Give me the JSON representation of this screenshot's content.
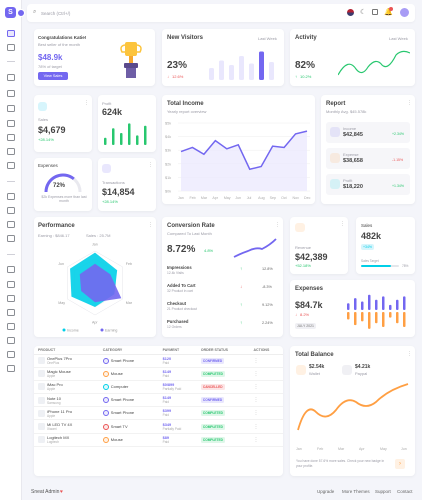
{
  "topbar": {
    "search_placeholder": "Search (Ctrl+/)"
  },
  "congrats": {
    "title": "Congratulations Katie!",
    "subtitle": "Best seller of the month",
    "amount": "$48.9k",
    "target": "78% of target",
    "button": "View Sales"
  },
  "visitors": {
    "title": "New Visitors",
    "period": "Last Week",
    "value": "23%",
    "change": "12.6%",
    "bars": [
      40,
      65,
      50,
      80,
      55,
      95,
      60
    ]
  },
  "activity": {
    "title": "Activity",
    "period": "Last Week",
    "value": "82%",
    "change": "10.2%"
  },
  "sales_small": {
    "label": "Sales",
    "value": "$4,679",
    "change": "+28.14%"
  },
  "profit_small": {
    "label": "Profit",
    "value": "624k",
    "bars": [
      30,
      70,
      50,
      90,
      40,
      80
    ]
  },
  "total_income": {
    "title": "Total Income",
    "subtitle": "Yearly report overview",
    "y_ticks": [
      "$5k",
      "$4k",
      "$3k",
      "$2k",
      "$1k",
      "$0k"
    ],
    "months": [
      "Jan",
      "Feb",
      "Mar",
      "Apr",
      "May",
      "Jun",
      "Jul",
      "Aug",
      "Sep",
      "Oct",
      "Nov",
      "Dec"
    ],
    "values": [
      2.9,
      3.2,
      2.7,
      3.7,
      3.1,
      3.4,
      1.6,
      1.8,
      3.3,
      3.2,
      4.2,
      4.4
    ]
  },
  "report": {
    "title": "Report",
    "subtitle": "Monthly Avg. $45.578k",
    "items": [
      {
        "label": "Income",
        "value": "$42,845",
        "change": "+2.34%",
        "color": "#7367f0"
      },
      {
        "label": "Expense",
        "value": "$38,658",
        "change": "-1.15%",
        "color": "#ff9f43"
      },
      {
        "label": "Profit",
        "value": "$18,220",
        "change": "+1.34%",
        "color": "#00cfe8"
      }
    ]
  },
  "expenses_small": {
    "label": "Expenses",
    "percent": "72%",
    "note": "$2k Expenses more than last month"
  },
  "transactions": {
    "label": "Transactions",
    "value": "$14,854",
    "change": "+28.14%"
  },
  "performance": {
    "title": "Performance",
    "earning": "Earning : $846.17",
    "sales": "Sales : 25.7M",
    "axes": [
      "Jan",
      "Feb",
      "Mar",
      "Apr",
      "May",
      "Jun"
    ],
    "legend": [
      "Income",
      "Earning"
    ]
  },
  "conversion": {
    "title": "Conversion Rate",
    "subtitle": "Compared To Last Month",
    "value": "8.72%",
    "change": "4.8%",
    "rows": [
      {
        "label": "Impressions",
        "sub": "12.4k Visits",
        "value": "12.8%",
        "up": true
      },
      {
        "label": "Added To Cart",
        "sub": "32 Product in cart",
        "value": "-8.3%",
        "up": false
      },
      {
        "label": "Checkout",
        "sub": "21 Product checkout",
        "value": "9.12%",
        "up": true
      },
      {
        "label": "Purchased",
        "sub": "12 Orders",
        "value": "2.24%",
        "up": true
      }
    ]
  },
  "revenue": {
    "label": "Revenue",
    "value": "$42,389",
    "change": "+52.18%"
  },
  "sales_card": {
    "title": "Sales",
    "value": "482k",
    "badge": "+34%",
    "target_label": "Sales Target",
    "target_value": "78%"
  },
  "expenses_card": {
    "title": "Expenses",
    "value": "$84.7k",
    "change": "8.2%",
    "period": "JULY 2021",
    "bars": [
      20,
      35,
      25,
      45,
      30,
      40,
      15,
      30,
      40
    ]
  },
  "table": {
    "headers": [
      "PRODUCT",
      "CATEGORY",
      "PAYMENT",
      "ORDER STATUS",
      "ACTIONS"
    ],
    "rows": [
      {
        "name": "OnePlus 7Pro",
        "brand": "OnePlus",
        "category": "Smart Phone",
        "cat_color": "#7367f0",
        "amount": "$120",
        "pay": "Paid",
        "status": "CONFIRMED",
        "st_bg": "#e9e7fd",
        "st_fg": "#7367f0"
      },
      {
        "name": "Magic Mouse",
        "brand": "Apple",
        "category": "Mouse",
        "cat_color": "#ff9f43",
        "amount": "$149",
        "pay": "Paid",
        "status": "COMPLETED",
        "st_bg": "#dff7e9",
        "st_fg": "#28c76f"
      },
      {
        "name": "iMac Pro",
        "brand": "Apple",
        "category": "Computer",
        "cat_color": "#00cfe8",
        "amount": "$0/899",
        "pay": "Partially Paid",
        "status": "CANCELLED",
        "st_bg": "#fce5e6",
        "st_fg": "#ea5455"
      },
      {
        "name": "Note 10",
        "brand": "Samsung",
        "category": "Smart Phone",
        "cat_color": "#7367f0",
        "amount": "$149",
        "pay": "Paid",
        "status": "CONFIRMED",
        "st_bg": "#e9e7fd",
        "st_fg": "#7367f0"
      },
      {
        "name": "iPhone 11 Pro",
        "brand": "Apple",
        "category": "Smart Phone",
        "cat_color": "#7367f0",
        "amount": "$399",
        "pay": "Paid",
        "status": "COMPLETED",
        "st_bg": "#dff7e9",
        "st_fg": "#28c76f"
      },
      {
        "name": "Mi LED TV 4X",
        "brand": "Xiaomi",
        "category": "Smart TV",
        "cat_color": "#ea5455",
        "amount": "$349",
        "pay": "Partially Paid",
        "status": "COMPLETED",
        "st_bg": "#dff7e9",
        "st_fg": "#28c76f"
      },
      {
        "name": "Logitech MX",
        "brand": "Logitech",
        "category": "Mouse",
        "cat_color": "#ff9f43",
        "amount": "$89",
        "pay": "Paid",
        "status": "COMPLETED",
        "st_bg": "#dff7e9",
        "st_fg": "#28c76f"
      }
    ]
  },
  "total_balance": {
    "title": "Total Balance",
    "wallet_value": "$2.54k",
    "wallet_label": "Wallet",
    "paypal_value": "$4.21k",
    "paypal_label": "Paypal",
    "months": [
      "Jan",
      "Feb",
      "Mar",
      "Apr",
      "May",
      "Jun"
    ],
    "note": "You have done 57.6% more sales. Check your new badge in your profile."
  },
  "footer": {
    "brand": "Sneat Admin",
    "links": [
      "Upgrade",
      "More Themes",
      "Support",
      "Contact"
    ]
  },
  "colors": {
    "primary": "#7367f0",
    "success": "#28c76f",
    "danger": "#ea5455",
    "warning": "#ff9f43",
    "info": "#00cfe8"
  }
}
